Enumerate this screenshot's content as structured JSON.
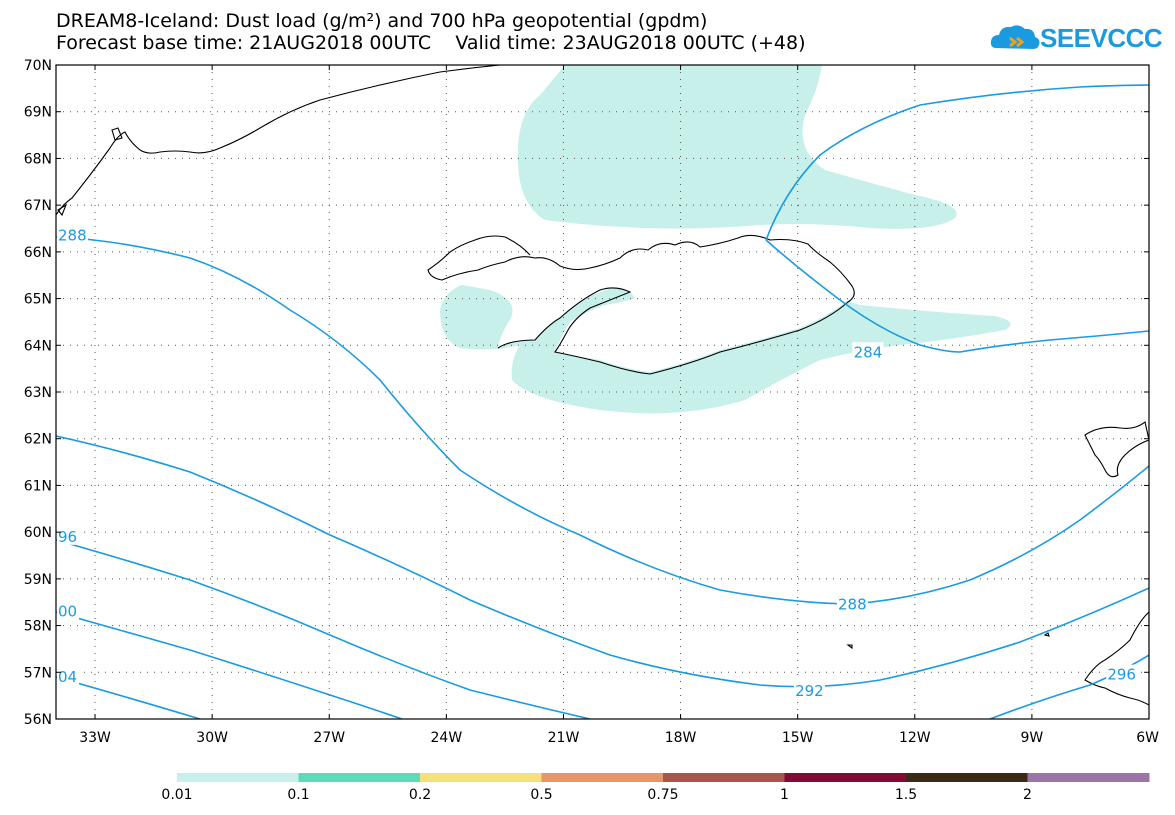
{
  "title": {
    "line1": "DREAM8-Iceland: Dust load (g/m²) and 700 hPa geopotential (gpdm)",
    "line2": "Forecast base time: 21AUG2018 00UTC    Valid time: 23AUG2018 00UTC (+48)"
  },
  "logo": {
    "text": "SEEVCCC",
    "icon": "cloud-icon"
  },
  "map": {
    "projection": "latlon",
    "lon_range": [
      -34,
      -6
    ],
    "lat_range": [
      56,
      70
    ],
    "lat_ticks": [
      {
        "value": 70,
        "label": "70N"
      },
      {
        "value": 69,
        "label": "69N"
      },
      {
        "value": 68,
        "label": "68N"
      },
      {
        "value": 67,
        "label": "67N"
      },
      {
        "value": 66,
        "label": "66N"
      },
      {
        "value": 65,
        "label": "65N"
      },
      {
        "value": 64,
        "label": "64N"
      },
      {
        "value": 63,
        "label": "63N"
      },
      {
        "value": 62,
        "label": "62N"
      },
      {
        "value": 61,
        "label": "61N"
      },
      {
        "value": 60,
        "label": "60N"
      },
      {
        "value": 59,
        "label": "59N"
      },
      {
        "value": 58,
        "label": "58N"
      },
      {
        "value": 57,
        "label": "57N"
      },
      {
        "value": 56,
        "label": "56N"
      }
    ],
    "lon_ticks": [
      {
        "value": -33,
        "label": "33W"
      },
      {
        "value": -30,
        "label": "30W"
      },
      {
        "value": -27,
        "label": "27W"
      },
      {
        "value": -24,
        "label": "24W"
      },
      {
        "value": -21,
        "label": "21W"
      },
      {
        "value": -18,
        "label": "18W"
      },
      {
        "value": -15,
        "label": "15W"
      },
      {
        "value": -12,
        "label": "12W"
      },
      {
        "value": -9,
        "label": "9W"
      },
      {
        "value": -6,
        "label": "6W"
      }
    ],
    "grid": "dotted",
    "contour_color": "#1a9be0",
    "contour_labels": [
      {
        "text": "288",
        "lon": -34.0,
        "lat": 66.35
      },
      {
        "text": "96",
        "lon": -34.0,
        "lat": 59.9
      },
      {
        "text": "00",
        "lon": -34.0,
        "lat": 58.3
      },
      {
        "text": "04",
        "lon": -34.0,
        "lat": 56.9
      },
      {
        "text": "284",
        "lon": -13.2,
        "lat": 63.85
      },
      {
        "text": "288",
        "lon": -13.6,
        "lat": 58.45
      },
      {
        "text": "292",
        "lon": -14.7,
        "lat": 56.6
      },
      {
        "text": "296",
        "lon": -6.7,
        "lat": 56.95
      }
    ]
  },
  "colorbar": {
    "labels": [
      "0.01",
      "0.1",
      "0.2",
      "0.5",
      "0.75",
      "1",
      "1.5",
      "2"
    ],
    "colors": [
      "#c8f0eb",
      "#5ddbb8",
      "#f5e07a",
      "#e8956a",
      "#a8554c",
      "#820a35",
      "#3c2a18",
      "#9c74a8"
    ]
  }
}
